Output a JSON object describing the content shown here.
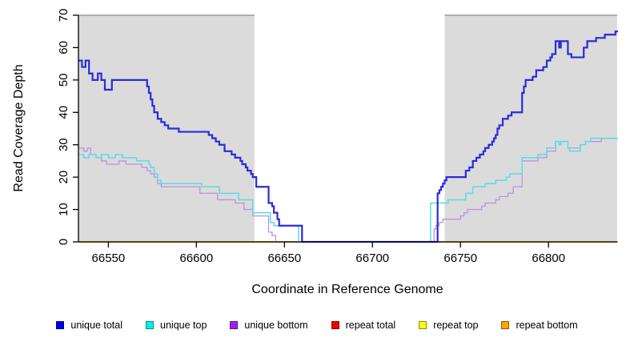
{
  "chart_data": {
    "type": "line",
    "step": true,
    "title": "",
    "xlabel": "Coordinate in Reference Genome",
    "ylabel": "Read Coverage Depth",
    "xlim": [
      66533,
      66839
    ],
    "ylim": [
      0,
      70
    ],
    "x_ticks": [
      66550,
      66600,
      66650,
      66700,
      66750,
      66800
    ],
    "y_ticks": [
      0,
      10,
      20,
      30,
      40,
      50,
      60,
      70
    ],
    "grid": false,
    "legend_position": "bottom",
    "plot_background": "#FFFFFF",
    "shaded_regions": [
      {
        "x0": 66533,
        "x1": 66633,
        "color": "#DBDBDB",
        "edge": "#777777"
      },
      {
        "x0": 66741,
        "x1": 66839,
        "color": "#DBDBDB",
        "edge": "#777777"
      }
    ],
    "draw_order": [
      "repeat total",
      "repeat top",
      "repeat bottom",
      "unique bottom",
      "unique top",
      "unique total"
    ],
    "series": [
      {
        "name": "unique total",
        "line_color": "#2B2BDB",
        "legend_fill": "#0000EE",
        "legend_border": "#00008B",
        "line_width": 2.2,
        "points": [
          [
            66533,
            56
          ],
          [
            66535,
            54
          ],
          [
            66537,
            56
          ],
          [
            66539,
            52
          ],
          [
            66541,
            50
          ],
          [
            66544,
            52
          ],
          [
            66546,
            50
          ],
          [
            66548,
            47
          ],
          [
            66552,
            50
          ],
          [
            66571,
            50
          ],
          [
            66572,
            48
          ],
          [
            66573,
            46
          ],
          [
            66574,
            44
          ],
          [
            66575,
            42
          ],
          [
            66576,
            40
          ],
          [
            66578,
            38
          ],
          [
            66580,
            37
          ],
          [
            66582,
            36
          ],
          [
            66584,
            35
          ],
          [
            66590,
            34
          ],
          [
            66605,
            34
          ],
          [
            66607,
            33
          ],
          [
            66609,
            32
          ],
          [
            66611,
            31
          ],
          [
            66613,
            30
          ],
          [
            66616,
            28
          ],
          [
            66620,
            27
          ],
          [
            66622,
            26
          ],
          [
            66625,
            25
          ],
          [
            66626,
            24
          ],
          [
            66628,
            23
          ],
          [
            66629,
            22
          ],
          [
            66631,
            21
          ],
          [
            66632,
            20
          ],
          [
            66634,
            17
          ],
          [
            66640,
            17
          ],
          [
            66641,
            12
          ],
          [
            66643,
            11
          ],
          [
            66644,
            9
          ],
          [
            66646,
            7
          ],
          [
            66647,
            5
          ],
          [
            66659,
            5
          ],
          [
            66660,
            0
          ],
          [
            66736,
            0
          ],
          [
            66737,
            15
          ],
          [
            66738,
            16
          ],
          [
            66739,
            17
          ],
          [
            66740,
            18
          ],
          [
            66741,
            19
          ],
          [
            66742,
            20
          ],
          [
            66752,
            20
          ],
          [
            66753,
            22
          ],
          [
            66755,
            23
          ],
          [
            66757,
            25
          ],
          [
            66759,
            26
          ],
          [
            66761,
            27
          ],
          [
            66763,
            28
          ],
          [
            66764,
            29
          ],
          [
            66766,
            30
          ],
          [
            66768,
            31
          ],
          [
            66769,
            32
          ],
          [
            66770,
            33
          ],
          [
            66771,
            35
          ],
          [
            66772,
            36
          ],
          [
            66774,
            38
          ],
          [
            66777,
            39
          ],
          [
            66779,
            40
          ],
          [
            66784,
            40
          ],
          [
            66785,
            46
          ],
          [
            66786,
            48
          ],
          [
            66787,
            50
          ],
          [
            66791,
            51
          ],
          [
            66793,
            53
          ],
          [
            66797,
            54
          ],
          [
            66799,
            56
          ],
          [
            66801,
            57
          ],
          [
            66802,
            58
          ],
          [
            66804,
            62
          ],
          [
            66806,
            60
          ],
          [
            66807,
            62
          ],
          [
            66811,
            58
          ],
          [
            66813,
            57
          ],
          [
            66819,
            57
          ],
          [
            66820,
            60
          ],
          [
            66822,
            62
          ],
          [
            66827,
            63
          ],
          [
            66832,
            64
          ],
          [
            66838,
            65
          ],
          [
            66843,
            65
          ]
        ]
      },
      {
        "name": "unique top",
        "line_color": "#58DCE8",
        "legend_fill": "#00EEEE",
        "legend_border": "#008B8B",
        "line_width": 1.5,
        "points": [
          [
            66533,
            27
          ],
          [
            66536,
            26
          ],
          [
            66539,
            27
          ],
          [
            66543,
            26
          ],
          [
            66546,
            27
          ],
          [
            66550,
            26
          ],
          [
            66554,
            27
          ],
          [
            66558,
            26
          ],
          [
            66566,
            25
          ],
          [
            66571,
            25
          ],
          [
            66573,
            24
          ],
          [
            66574,
            23
          ],
          [
            66576,
            21
          ],
          [
            66578,
            19
          ],
          [
            66580,
            18
          ],
          [
            66602,
            18
          ],
          [
            66603,
            17
          ],
          [
            66613,
            15
          ],
          [
            66624,
            13
          ],
          [
            66632,
            9
          ],
          [
            66641,
            9
          ],
          [
            66642,
            6
          ],
          [
            66644,
            5
          ],
          [
            66650,
            5
          ],
          [
            66658,
            0
          ],
          [
            66732,
            0
          ],
          [
            66733,
            12
          ],
          [
            66743,
            13
          ],
          [
            66752,
            13
          ],
          [
            66753,
            15
          ],
          [
            66757,
            17
          ],
          [
            66764,
            18
          ],
          [
            66770,
            19
          ],
          [
            66776,
            20
          ],
          [
            66778,
            21
          ],
          [
            66784,
            21
          ],
          [
            66785,
            26
          ],
          [
            66794,
            27
          ],
          [
            66799,
            29
          ],
          [
            66804,
            31
          ],
          [
            66806,
            30
          ],
          [
            66807,
            31
          ],
          [
            66811,
            29
          ],
          [
            66812,
            28
          ],
          [
            66817,
            28
          ],
          [
            66818,
            30
          ],
          [
            66821,
            31
          ],
          [
            66824,
            32
          ],
          [
            66836,
            32
          ],
          [
            66840,
            33
          ],
          [
            66843,
            33
          ]
        ]
      },
      {
        "name": "unique bottom",
        "line_color": "#BD92E0",
        "legend_fill": "#A020F0",
        "legend_border": "#551A8B",
        "line_width": 1.3,
        "points": [
          [
            66533,
            29
          ],
          [
            66536,
            28
          ],
          [
            66538,
            29
          ],
          [
            66540,
            27
          ],
          [
            66543,
            26
          ],
          [
            66546,
            25
          ],
          [
            66549,
            24
          ],
          [
            66556,
            25
          ],
          [
            66560,
            24
          ],
          [
            66566,
            24
          ],
          [
            66569,
            23
          ],
          [
            66572,
            22
          ],
          [
            66574,
            21
          ],
          [
            66576,
            20
          ],
          [
            66578,
            18
          ],
          [
            66580,
            17
          ],
          [
            66601,
            17
          ],
          [
            66602,
            15
          ],
          [
            66612,
            13
          ],
          [
            66622,
            12
          ],
          [
            66627,
            10
          ],
          [
            66632,
            8
          ],
          [
            66640,
            8
          ],
          [
            66641,
            3
          ],
          [
            66643,
            2
          ],
          [
            66645,
            0
          ],
          [
            66734,
            0
          ],
          [
            66735,
            4
          ],
          [
            66736,
            5
          ],
          [
            66738,
            6
          ],
          [
            66740,
            7
          ],
          [
            66750,
            8
          ],
          [
            66752,
            9
          ],
          [
            66754,
            10
          ],
          [
            66762,
            11
          ],
          [
            66764,
            12
          ],
          [
            66770,
            13
          ],
          [
            66772,
            14
          ],
          [
            66777,
            15
          ],
          [
            66780,
            17
          ],
          [
            66784,
            17
          ],
          [
            66785,
            25
          ],
          [
            66794,
            26
          ],
          [
            66799,
            28
          ],
          [
            66804,
            31
          ],
          [
            66806,
            30
          ],
          [
            66807,
            31
          ],
          [
            66811,
            29
          ],
          [
            66817,
            29
          ],
          [
            66818,
            30
          ],
          [
            66821,
            31
          ],
          [
            66830,
            32
          ],
          [
            66843,
            32
          ]
        ]
      },
      {
        "name": "repeat total",
        "line_color": "#DD0000",
        "legend_fill": "#EE0000",
        "legend_border": "#8B0000",
        "line_width": 1.5,
        "points": [
          [
            66533,
            0
          ],
          [
            66843,
            0
          ]
        ]
      },
      {
        "name": "repeat top",
        "line_color": "#FFEE00",
        "legend_fill": "#FFFF00",
        "legend_border": "#8B8B00",
        "line_width": 1.5,
        "points": [
          [
            66533,
            0
          ],
          [
            66843,
            0
          ]
        ]
      },
      {
        "name": "repeat bottom",
        "line_color": "#FFA520",
        "legend_fill": "#FFA500",
        "legend_border": "#8B5A00",
        "line_width": 1.6,
        "points": [
          [
            66533,
            0
          ],
          [
            66843,
            0
          ]
        ]
      }
    ]
  }
}
